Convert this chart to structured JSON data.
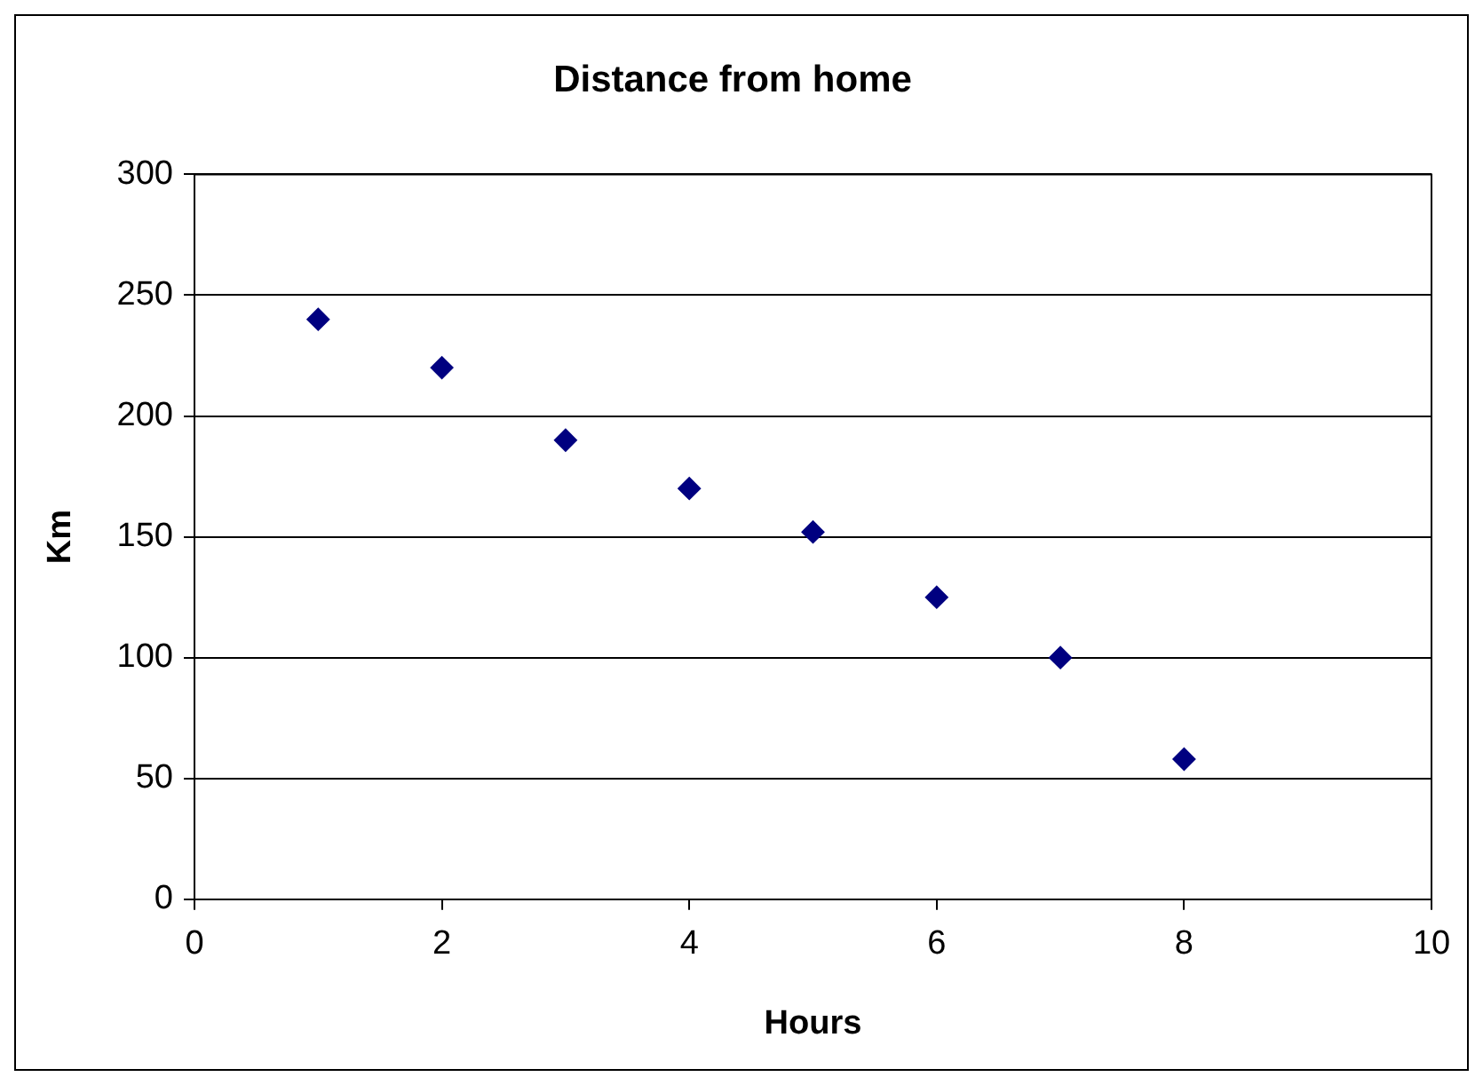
{
  "chart_data": {
    "type": "scatter",
    "title": "Distance from home",
    "xlabel": "Hours",
    "ylabel": "Km",
    "x": [
      1,
      2,
      3,
      4,
      5,
      6,
      7,
      8
    ],
    "series": [
      {
        "color": "#000080",
        "values": [
          240,
          220,
          190,
          170,
          152,
          125,
          100,
          58
        ]
      }
    ],
    "xlim": [
      0,
      10
    ],
    "xticks": [
      0,
      2,
      4,
      6,
      8,
      10
    ],
    "ylim": [
      0,
      300
    ],
    "yticks": [
      0,
      50,
      100,
      150,
      200,
      250,
      300
    ],
    "grid": "y",
    "marker": "diamond",
    "legend": false
  }
}
